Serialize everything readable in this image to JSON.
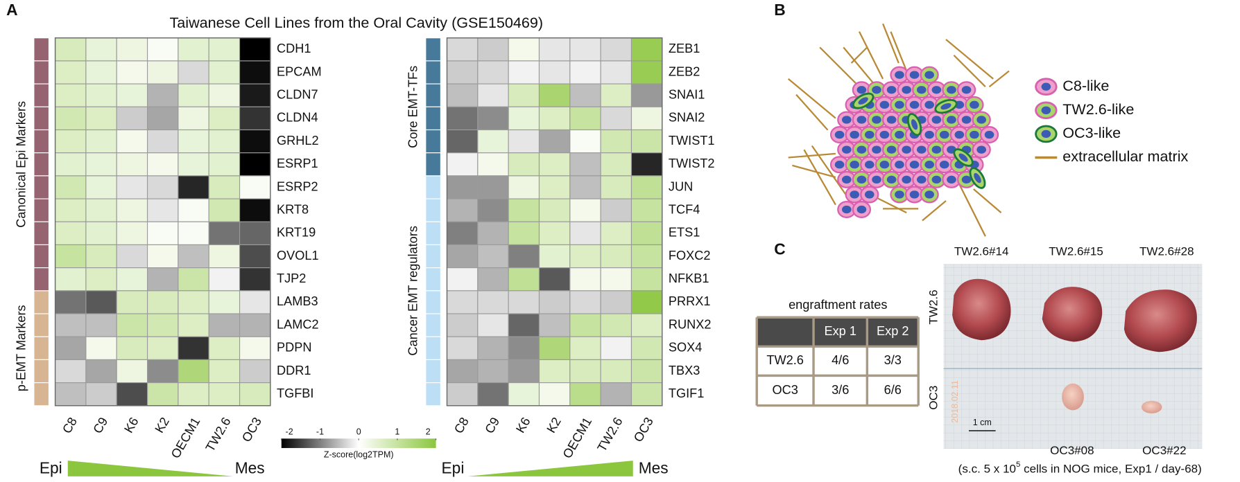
{
  "panel_a": {
    "label": "A",
    "title": "Taiwanese Cell Lines from the Oral Cavity  (GSE150469)",
    "columns": [
      "C8",
      "C9",
      "K6",
      "K2",
      "OECM1",
      "TW2.6",
      "OC3"
    ],
    "zlim": [
      -2,
      2
    ],
    "colors": {
      "low": "#000000",
      "mid": "#ffffff",
      "high": "#8cc63f"
    },
    "colorbar": {
      "ticks": [
        -2,
        -1,
        0,
        1,
        2
      ],
      "label": "Z-score(log2TPM)"
    },
    "axis_ends": [
      "Epi",
      "Mes"
    ],
    "heatmaps": [
      {
        "groups": [
          {
            "name": "Canonical Epi Markers",
            "color": "#966470",
            "genes": [
              "CDH1",
              "EPCAM",
              "CLDN7",
              "CLDN4",
              "GRHL2",
              "ESRP1",
              "ESRP2",
              "KRT8",
              "KRT19",
              "OVOL1",
              "TJP2"
            ]
          },
          {
            "name": "p-EMT Markers",
            "color": "#d8b592",
            "genes": [
              "LAMB3",
              "LAMC2",
              "PDPN",
              "DDR1",
              "TGFBI"
            ]
          }
        ],
        "values": [
          [
            0.7,
            0.4,
            0.3,
            0.1,
            0.5,
            0.5,
            -2
          ],
          [
            0.6,
            0.4,
            0.2,
            0.3,
            -0.3,
            0.5,
            -1.9
          ],
          [
            0.6,
            0.5,
            0.4,
            -0.6,
            0.5,
            0.3,
            -1.8
          ],
          [
            0.8,
            0.6,
            -0.4,
            -0.7,
            0.3,
            0.6,
            -1.6
          ],
          [
            0.6,
            0.5,
            0.2,
            -0.3,
            0.4,
            0.5,
            -1.9
          ],
          [
            0.5,
            0.4,
            0.3,
            0.2,
            0.4,
            0.5,
            -2
          ],
          [
            0.8,
            0.4,
            -0.2,
            -0.3,
            -1.7,
            0.7,
            0.1
          ],
          [
            0.6,
            0.5,
            0.3,
            -0.2,
            0.1,
            0.8,
            -1.9
          ],
          [
            0.6,
            0.5,
            0.3,
            0.1,
            0.1,
            -1.1,
            -1.2
          ],
          [
            1.0,
            0.7,
            -0.3,
            0.2,
            -0.5,
            0.3,
            -1.4
          ],
          [
            0.5,
            0.6,
            0.4,
            -0.6,
            0.9,
            -0.1,
            -1.6
          ],
          [
            -1.1,
            -1.3,
            0.7,
            0.7,
            0.6,
            0.4,
            -0.2
          ],
          [
            -0.5,
            -0.5,
            0.9,
            0.8,
            0.6,
            -0.6,
            -0.6
          ],
          [
            -0.7,
            0.2,
            0.7,
            0.6,
            -1.6,
            0.6,
            0.2
          ],
          [
            -0.3,
            -0.7,
            0.3,
            -0.9,
            1.4,
            0.6,
            -0.4
          ],
          [
            -0.5,
            -0.4,
            -1.4,
            0.9,
            0.6,
            0.6,
            0.7
          ]
        ]
      },
      {
        "groups": [
          {
            "name": "Core EMT-TFs",
            "color": "#47799a",
            "genes": [
              "ZEB1",
              "ZEB2",
              "SNAI1",
              "SNAI2",
              "TWIST1",
              "TWIST2"
            ]
          },
          {
            "name": "Cancer EMT regulators",
            "color": "#bcdff5",
            "genes": [
              "JUN",
              "TCF4",
              "ETS1",
              "FOXC2",
              "NFKB1",
              "PRRX1",
              "RUNX2",
              "SOX4",
              "TBX3",
              "TGIF1"
            ]
          }
        ],
        "values": [
          [
            -0.3,
            -0.4,
            0.2,
            -0.2,
            -0.2,
            -0.3,
            1.8
          ],
          [
            -0.4,
            -0.3,
            -0.1,
            -0.2,
            -0.1,
            -0.2,
            1.8
          ],
          [
            -0.5,
            -0.2,
            0.7,
            1.5,
            -0.5,
            0.6,
            -0.8
          ],
          [
            -1.1,
            -0.9,
            0.4,
            0.6,
            1.0,
            -0.3,
            0.3
          ],
          [
            -1.2,
            0.4,
            -0.2,
            -0.7,
            0.1,
            0.8,
            0.9
          ],
          [
            -0.1,
            0.2,
            0.7,
            0.6,
            -0.5,
            0.7,
            -1.7
          ],
          [
            -0.8,
            -0.8,
            0.3,
            0.6,
            -0.5,
            0.7,
            1.1
          ],
          [
            -0.6,
            -0.9,
            1.0,
            0.7,
            0.2,
            -0.4,
            1.0
          ],
          [
            -1.0,
            -0.6,
            1.0,
            0.6,
            -0.2,
            0.6,
            1.1
          ],
          [
            -0.7,
            -0.5,
            -1.0,
            0.5,
            0.6,
            0.7,
            1.0
          ],
          [
            -0.1,
            -0.6,
            1.1,
            -1.3,
            0.2,
            0.2,
            1.0
          ],
          [
            -0.3,
            -0.3,
            -0.3,
            -0.4,
            -0.3,
            -0.4,
            1.9
          ],
          [
            -0.4,
            -0.2,
            -1.2,
            -0.5,
            1.0,
            0.8,
            0.6
          ],
          [
            -0.3,
            -0.6,
            -0.9,
            1.4,
            0.6,
            -0.1,
            0.8
          ],
          [
            -0.7,
            -0.6,
            -0.8,
            0.6,
            0.7,
            0.7,
            0.9
          ],
          [
            -0.4,
            -1.1,
            0.4,
            0.2,
            1.2,
            -0.6,
            0.9
          ]
        ]
      }
    ]
  },
  "panel_b": {
    "label": "B",
    "legend": [
      "C8-like",
      "TW2.6-like",
      "OC3-like",
      "extracellular matrix"
    ]
  },
  "panel_c": {
    "label": "C",
    "table": {
      "title": "engraftment rates",
      "header": [
        "Exp 1",
        "Exp 2"
      ],
      "rows": [
        {
          "name": "TW2.6",
          "cells": [
            "4/6",
            "3/3"
          ]
        },
        {
          "name": "OC3",
          "cells": [
            "3/6",
            "6/6"
          ]
        }
      ]
    },
    "photo": {
      "top_labels": [
        "TW2.6#14",
        "TW2.6#15",
        "TW2.6#28"
      ],
      "row_labels": [
        "TW2.6",
        "OC3"
      ],
      "bottom_labels": [
        "OC3#08",
        "OC3#22"
      ],
      "scale": "1 cm",
      "stamp": "2018.02.11"
    },
    "caption": [
      "(s.c. 5 x 10",
      "5",
      " cells in NOG mice,  Exp1 / day-68)"
    ]
  }
}
